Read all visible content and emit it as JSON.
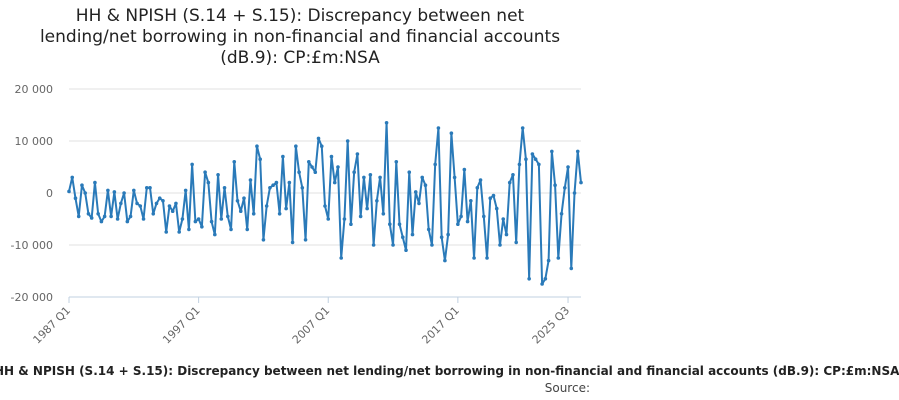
{
  "title_lines": [
    "HH & NPISH (S.14 + S.15): Discrepancy between net",
    "lending/net borrowing in non-financial and financial accounts",
    "(dB.9): CP:£m:NSA"
  ],
  "legend_text": "HH & NPISH (S.14 + S.15): Discrepancy between net lending/net borrowing in non-financial and financial accounts (dB.9): CP:£m:NSA",
  "source_label": "Source:",
  "colors": {
    "series": "#2a7ab9",
    "grid": "#e0e0e0",
    "axis": "#c0d0e0",
    "text": "#666666"
  },
  "chart_data": {
    "type": "line",
    "title": "HH & NPISH (S.14 + S.15): Discrepancy between net lending/net borrowing in non-financial and financial accounts (dB.9): CP:£m:NSA",
    "xlabel": "",
    "ylabel": "",
    "ylim": [
      -20000,
      20000
    ],
    "y_ticks": [
      20000,
      10000,
      0,
      -10000,
      -20000
    ],
    "y_tick_labels": [
      "20 000",
      "10 000",
      "0",
      "-10 000",
      "-20 000"
    ],
    "x_tick_labels": [
      "1987 Q1",
      "1997 Q1",
      "2007 Q1",
      "2017 Q1",
      "2025 Q3"
    ],
    "x_tick_index": [
      0,
      40,
      80,
      120,
      154
    ],
    "grid": true,
    "legend": "bottom",
    "series": [
      {
        "name": "HH & NPISH (S.14 + S.15): Discrepancy between net lending/net borrowing in non-financial and financial accounts (dB.9): CP:£m:NSA",
        "x_start": "1987 Q1",
        "values": [
          300,
          3000,
          -1000,
          -4500,
          1500,
          0,
          -4000,
          -4800,
          2000,
          -4000,
          -5500,
          -4500,
          500,
          -4500,
          200,
          -5000,
          -2000,
          0,
          -5500,
          -4500,
          500,
          -2000,
          -2500,
          -5000,
          1000,
          1000,
          -4000,
          -2000,
          -1000,
          -1500,
          -7500,
          -2500,
          -3500,
          -2000,
          -7500,
          -5000,
          500,
          -7000,
          5500,
          -5500,
          -5000,
          -6500,
          4000,
          2000,
          -5500,
          -8000,
          3500,
          -5000,
          1000,
          -4500,
          -7000,
          6000,
          -1500,
          -3500,
          -1000,
          -7000,
          2500,
          -4000,
          9000,
          6500,
          -9000,
          -2500,
          1000,
          1500,
          2000,
          -4000,
          7000,
          -3000,
          2000,
          -9500,
          9000,
          4000,
          1000,
          -9000,
          6000,
          5000,
          4000,
          10500,
          9000,
          -2500,
          -5000,
          7000,
          2000,
          5000,
          -12500,
          -5000,
          10000,
          -6000,
          4000,
          7500,
          -4500,
          3000,
          -3000,
          3500,
          -10000,
          -1500,
          3000,
          -4000,
          13500,
          -6000,
          -10000,
          6000,
          -6000,
          -8500,
          -11000,
          4000,
          -8000,
          200,
          -2000,
          3000,
          1500,
          -7000,
          -10000,
          5500,
          12500,
          -8500,
          -13000,
          -8000,
          11500,
          3000,
          -6000,
          -4500,
          4500,
          -5500,
          -1500,
          -12500,
          1000,
          2500,
          -4500,
          -12500,
          -1000,
          -500,
          -3000,
          -10000,
          -5000,
          -8000,
          2000,
          3500,
          -9500,
          5500,
          12500,
          6500,
          -16500,
          7500,
          6500,
          5500,
          -17500,
          -16500,
          -13000,
          8000,
          1500,
          -12500,
          -4000,
          1000,
          5000,
          -14500,
          0,
          8000,
          2000
        ]
      }
    ]
  }
}
